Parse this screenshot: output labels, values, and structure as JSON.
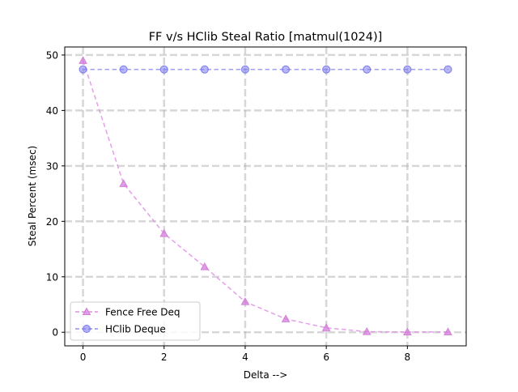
{
  "chart_data": {
    "type": "line",
    "title": "FF v/s HClib Steal Ratio [matmul(1024)]",
    "xlabel": "Delta -->",
    "ylabel": "Steal Percent (msec)",
    "xlim": [
      -0.45,
      9.45
    ],
    "ylim": [
      -2.45,
      51.45
    ],
    "xticks": [
      0,
      2,
      4,
      6,
      8
    ],
    "yticks": [
      0,
      10,
      20,
      30,
      40,
      50
    ],
    "grid": true,
    "legend_position": "lower-left",
    "x": [
      0,
      1,
      2,
      3,
      4,
      5,
      6,
      7,
      8,
      9
    ],
    "series": [
      {
        "name": "Fence Free Deq",
        "marker": "triangle",
        "color": "#e08ee6",
        "marker_color": "#d37ed9",
        "values": [
          49.0,
          26.8,
          17.8,
          11.8,
          5.5,
          2.4,
          0.8,
          0.1,
          0.05,
          0.05
        ]
      },
      {
        "name": "HClib Deque",
        "marker": "circle",
        "color": "#8f8ff0",
        "marker_color": "#7b7bf0",
        "values": [
          47.4,
          47.4,
          47.4,
          47.4,
          47.4,
          47.4,
          47.4,
          47.4,
          47.4,
          47.4
        ]
      }
    ]
  }
}
